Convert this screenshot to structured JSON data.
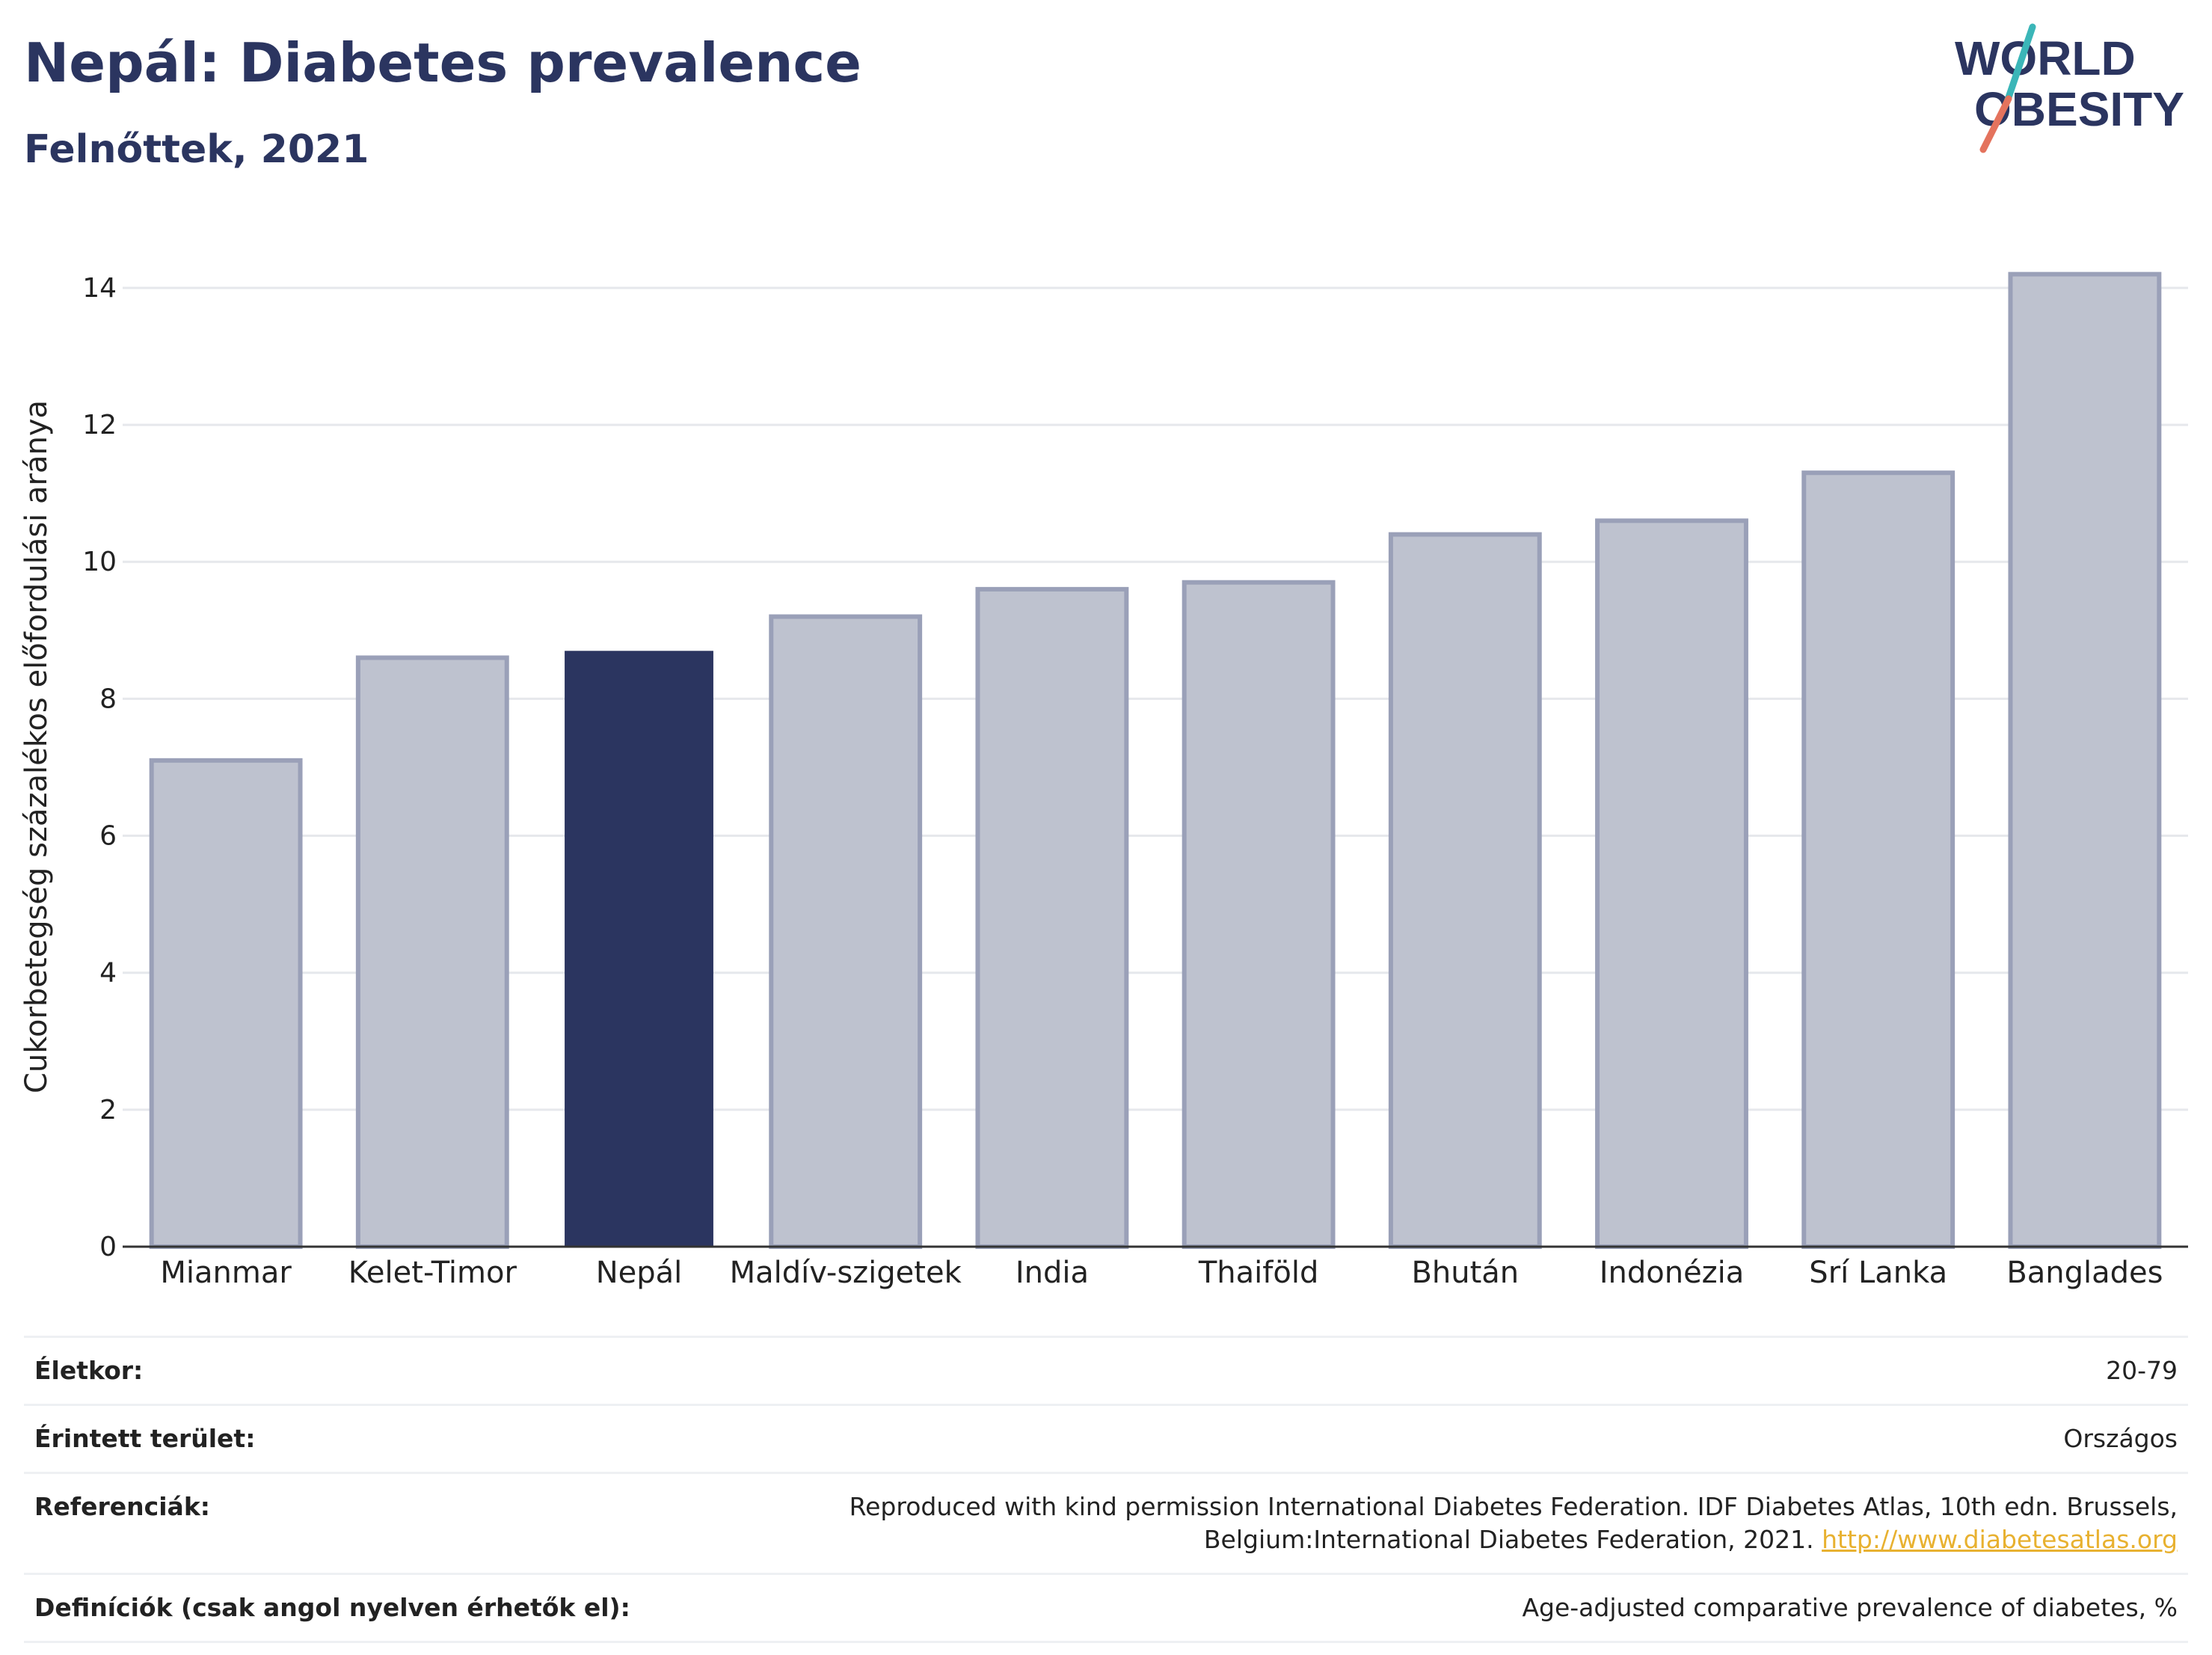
{
  "header": {
    "title": "Nepál: Diabetes prevalence",
    "subtitle": "Felnőttek, 2021"
  },
  "logo": {
    "line1": "WORLD",
    "line2": "OBESITY",
    "color_text": "#2b3560",
    "color_slash_top": "#3bb6b8",
    "color_slash_bottom": "#e4735d"
  },
  "colors": {
    "highlight": "#2b3560",
    "bar": "#bec2cf",
    "bar_border": "#9aa0b8",
    "grid": "#e6e8ec",
    "axis": "#333333"
  },
  "chart_data": {
    "type": "bar",
    "title": "Nepál: Diabetes prevalence",
    "subtitle": "Felnőttek, 2021",
    "ylabel": "Cukorbetegség százalékos előfordulási aránya",
    "xlabel": "",
    "ylim": [
      0,
      14.6
    ],
    "yticks": [
      0,
      2,
      4,
      6,
      8,
      10,
      12,
      14
    ],
    "grid": true,
    "categories": [
      "Mianmar",
      "Kelet-Timor",
      "Nepál",
      "Maldív-szigetek",
      "India",
      "Thaiföld",
      "Bhután",
      "Indonézia",
      "Srí Lanka",
      "Banglades"
    ],
    "values": [
      7.1,
      8.6,
      8.7,
      9.2,
      9.6,
      9.7,
      10.4,
      10.6,
      11.3,
      14.2
    ],
    "highlight": "Nepál"
  },
  "info": [
    {
      "key": "Életkor:",
      "value": "20-79"
    },
    {
      "key": "Érintett terület:",
      "value": "Országos"
    },
    {
      "key": "Referenciák:",
      "value": "Reproduced with kind permission International Diabetes Federation.  IDF Diabetes Atlas, 10th edn. Brussels, Belgium:International Diabetes Federation, 2021. ",
      "link": "http://www.diabetesatlas.org"
    },
    {
      "key": "Definíciók (csak angol nyelven érhetők el):",
      "value": "Age-adjusted comparative prevalence of diabetes, %"
    }
  ]
}
